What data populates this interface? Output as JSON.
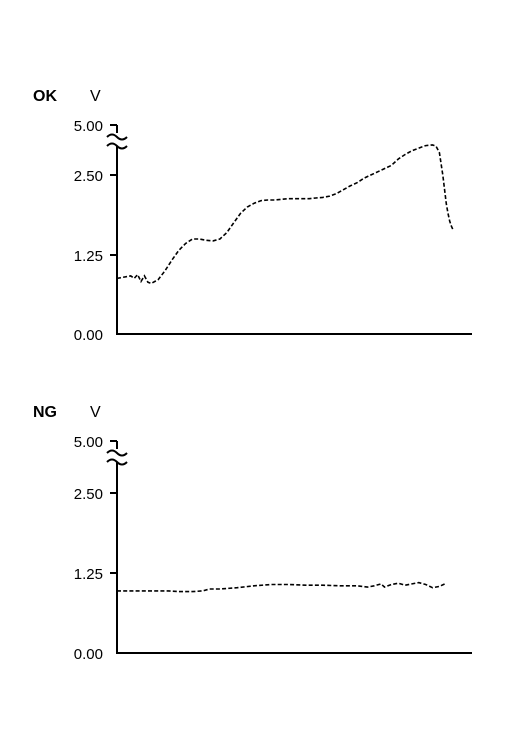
{
  "chart_data": [
    {
      "type": "line",
      "label": "OK",
      "unit": "V",
      "y_ticks": [
        "0.00",
        "1.25",
        "2.50",
        "5.00"
      ],
      "y_tick_values": [
        0,
        1.25,
        2.5,
        5.0
      ],
      "y_axis_break": true,
      "x": [
        0,
        2,
        4,
        5,
        6,
        7,
        8,
        9,
        10,
        12,
        14,
        16,
        18,
        20,
        22,
        24,
        26,
        28,
        30,
        32,
        34,
        36,
        38,
        40,
        42,
        44,
        46,
        48,
        50,
        52,
        54,
        56,
        58,
        60,
        62,
        64,
        66,
        68,
        70,
        72,
        74,
        76,
        78,
        80,
        82,
        84,
        86,
        88,
        90,
        92,
        93,
        94,
        95,
        96,
        96.5,
        97,
        97.5,
        98
      ],
      "values": [
        0.88,
        0.9,
        0.92,
        0.88,
        0.94,
        0.83,
        0.92,
        0.82,
        0.8,
        0.86,
        1.0,
        1.17,
        1.32,
        1.43,
        1.5,
        1.5,
        1.48,
        1.47,
        1.5,
        1.6,
        1.75,
        1.9,
        2.0,
        2.06,
        2.1,
        2.11,
        2.11,
        2.12,
        2.13,
        2.13,
        2.13,
        2.13,
        2.14,
        2.15,
        2.17,
        2.21,
        2.27,
        2.33,
        2.38,
        2.45,
        2.5,
        2.55,
        2.6,
        2.65,
        2.75,
        2.82,
        2.88,
        2.92,
        2.96,
        2.97,
        2.95,
        2.85,
        2.5,
        2.05,
        1.9,
        1.78,
        1.7,
        1.64
      ],
      "grid": false
    },
    {
      "type": "line",
      "label": "NG",
      "unit": "V",
      "y_ticks": [
        "0.00",
        "1.25",
        "2.50",
        "5.00"
      ],
      "y_tick_values": [
        0,
        1.25,
        2.5,
        5.0
      ],
      "y_axis_break": true,
      "x": [
        0,
        5,
        10,
        15,
        18,
        22,
        25,
        27,
        30,
        35,
        40,
        45,
        50,
        55,
        60,
        65,
        70,
        73,
        75,
        77,
        78,
        80,
        82,
        84,
        86,
        88,
        90,
        92,
        94,
        96
      ],
      "values": [
        0.97,
        0.97,
        0.97,
        0.97,
        0.96,
        0.96,
        0.97,
        1.0,
        1.0,
        1.02,
        1.05,
        1.07,
        1.07,
        1.06,
        1.06,
        1.05,
        1.05,
        1.03,
        1.05,
        1.08,
        1.03,
        1.07,
        1.09,
        1.06,
        1.08,
        1.1,
        1.07,
        1.02,
        1.04,
        1.09
      ],
      "grid": false
    }
  ]
}
